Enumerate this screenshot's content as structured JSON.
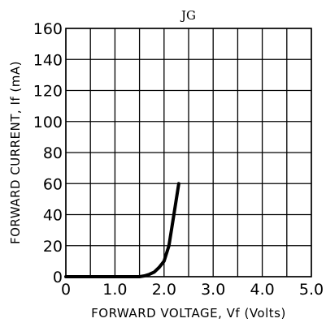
{
  "chart_data": {
    "type": "line",
    "title": "JG",
    "xlabel": "FORWARD VOLTAGE, Vf (Volts)",
    "ylabel": "FORWARD CURRENT, If (mA)",
    "xlim": [
      0,
      5
    ],
    "ylim": [
      0,
      160
    ],
    "x_ticks": [
      0,
      1,
      2,
      3,
      4,
      5
    ],
    "x_tick_labels": [
      "0",
      "1.0",
      "2.0",
      "3.0",
      "4.0",
      "5.0"
    ],
    "y_ticks": [
      0,
      20,
      40,
      60,
      80,
      100,
      120,
      140,
      160
    ],
    "y_tick_labels": [
      "0",
      "20",
      "40",
      "60",
      "80",
      "100",
      "120",
      "140",
      "160"
    ],
    "x_grid": [
      0,
      0.5,
      1,
      1.5,
      2,
      2.5,
      3,
      3.5,
      4,
      4.5,
      5
    ],
    "y_grid": [
      0,
      20,
      40,
      60,
      80,
      100,
      120,
      140,
      160
    ],
    "grid": true,
    "series": [
      {
        "x": [
          0,
          1.5,
          1.6,
          1.7,
          1.8,
          1.9,
          2.0,
          2.1,
          2.2,
          2.3
        ],
        "y": [
          0,
          0,
          0.5,
          1.5,
          3,
          6,
          10,
          20,
          40,
          60
        ]
      }
    ]
  }
}
